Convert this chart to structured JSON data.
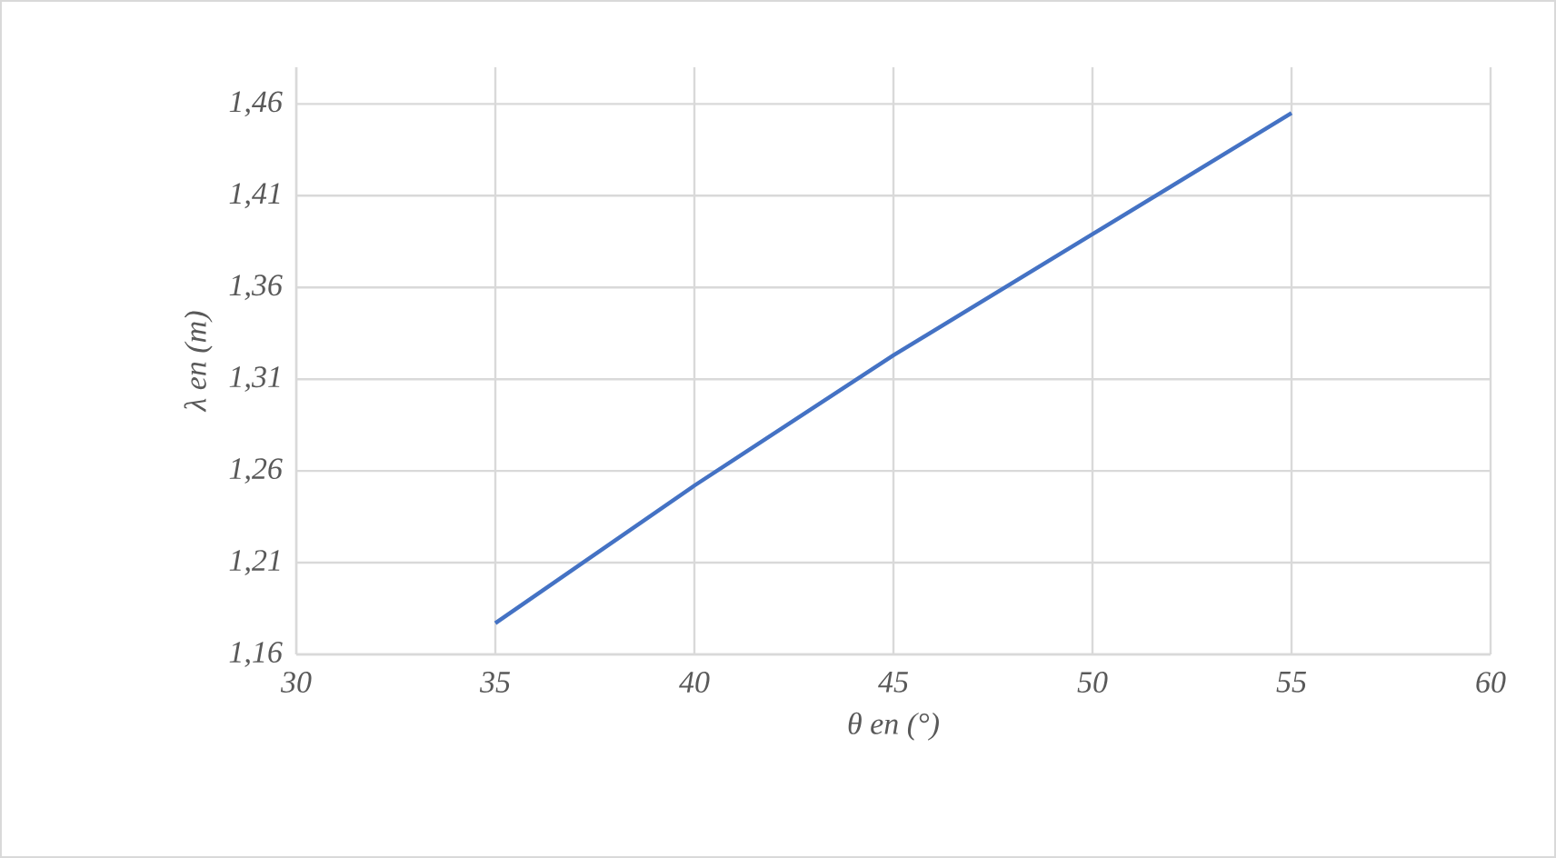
{
  "chart_data": {
    "type": "line",
    "xlabel": "θ en (°)",
    "ylabel": "λ en (m)",
    "x": [
      35,
      40,
      45,
      50,
      55
    ],
    "series": [
      {
        "color": "#4472c4",
        "values": [
          1.177,
          1.252,
          1.323,
          1.389,
          1.455
        ]
      }
    ],
    "xlim": [
      30,
      60
    ],
    "xticks": [
      30,
      35,
      40,
      45,
      50,
      55,
      60
    ],
    "ylim": [
      1.16,
      1.48
    ],
    "yticks": [
      {
        "value": 1.16,
        "label": "1,16"
      },
      {
        "value": 1.21,
        "label": "1,21"
      },
      {
        "value": 1.26,
        "label": "1,26"
      },
      {
        "value": 1.31,
        "label": "1,31"
      },
      {
        "value": 1.36,
        "label": "1,36"
      },
      {
        "value": 1.41,
        "label": "1,41"
      },
      {
        "value": 1.46,
        "label": "1,46"
      }
    ],
    "grid": true,
    "marker": "none",
    "line_style": "solid"
  }
}
